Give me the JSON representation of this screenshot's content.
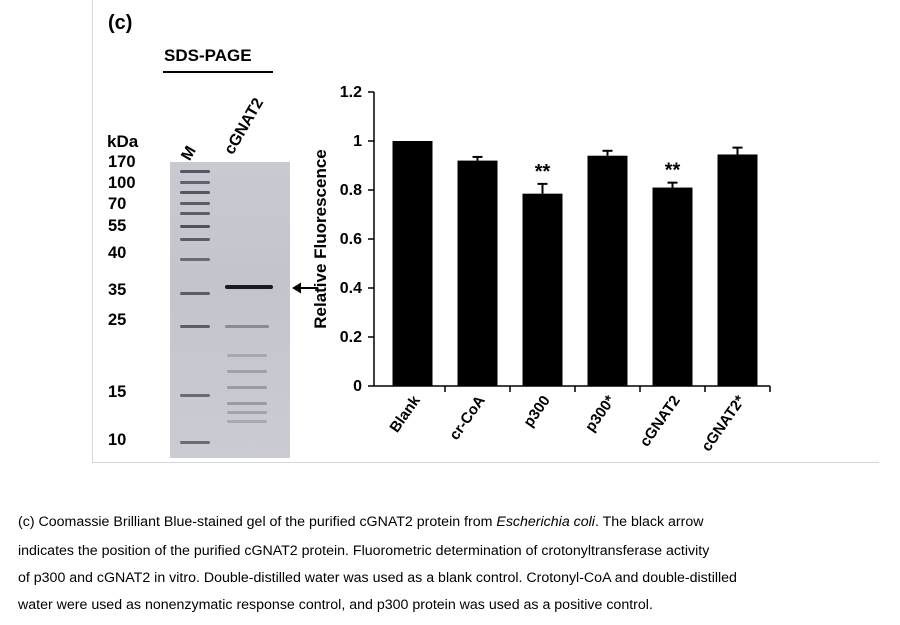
{
  "figure": {
    "panel_label": "(c)",
    "gel": {
      "heading": "SDS-PAGE",
      "unit_label": "kDa",
      "lanes": [
        "M",
        "cGNAT2"
      ],
      "mw_markers": [
        "170",
        "100",
        "70",
        "55",
        "40",
        "35",
        "25",
        "15",
        "10"
      ],
      "arrow": "←"
    }
  },
  "chart_data": {
    "type": "bar",
    "title": "",
    "xlabel": "",
    "ylabel": "Relative Fluorescence",
    "categories": [
      "Blank",
      "cr-CoA",
      "p300",
      "p300*",
      "cGNAT2",
      "cGNAT2*"
    ],
    "values": [
      1.0,
      0.92,
      0.785,
      0.94,
      0.81,
      0.945
    ],
    "errors": [
      0.0,
      0.015,
      0.04,
      0.02,
      0.02,
      0.028
    ],
    "annotations": [
      "",
      "",
      "**",
      "",
      "**",
      ""
    ],
    "ylim": [
      0,
      1.2
    ],
    "yticks": [
      "0",
      "0.2",
      "0.4",
      "0.6",
      "0.8",
      "1",
      "1.2"
    ],
    "bar_color": "#000000",
    "grid": false
  },
  "caption": {
    "line1_prefix": "(c) Coomassie Brilliant Blue-stained gel of the purified cGNAT2 protein from ",
    "line1_italic": "Escherichia coli",
    "line1_suffix": ". The black arrow",
    "line2": "indicates the position of the purified cGNAT2 protein. Fluorometric determination of crotonyltransferase activity",
    "line3": "of p300 and cGNAT2 in vitro. Double-distilled water was used as a blank control. Crotonyl-CoA and double-distilled",
    "line4": "water were used as nonenzymatic response control, and p300 protein was used as a positive control."
  }
}
